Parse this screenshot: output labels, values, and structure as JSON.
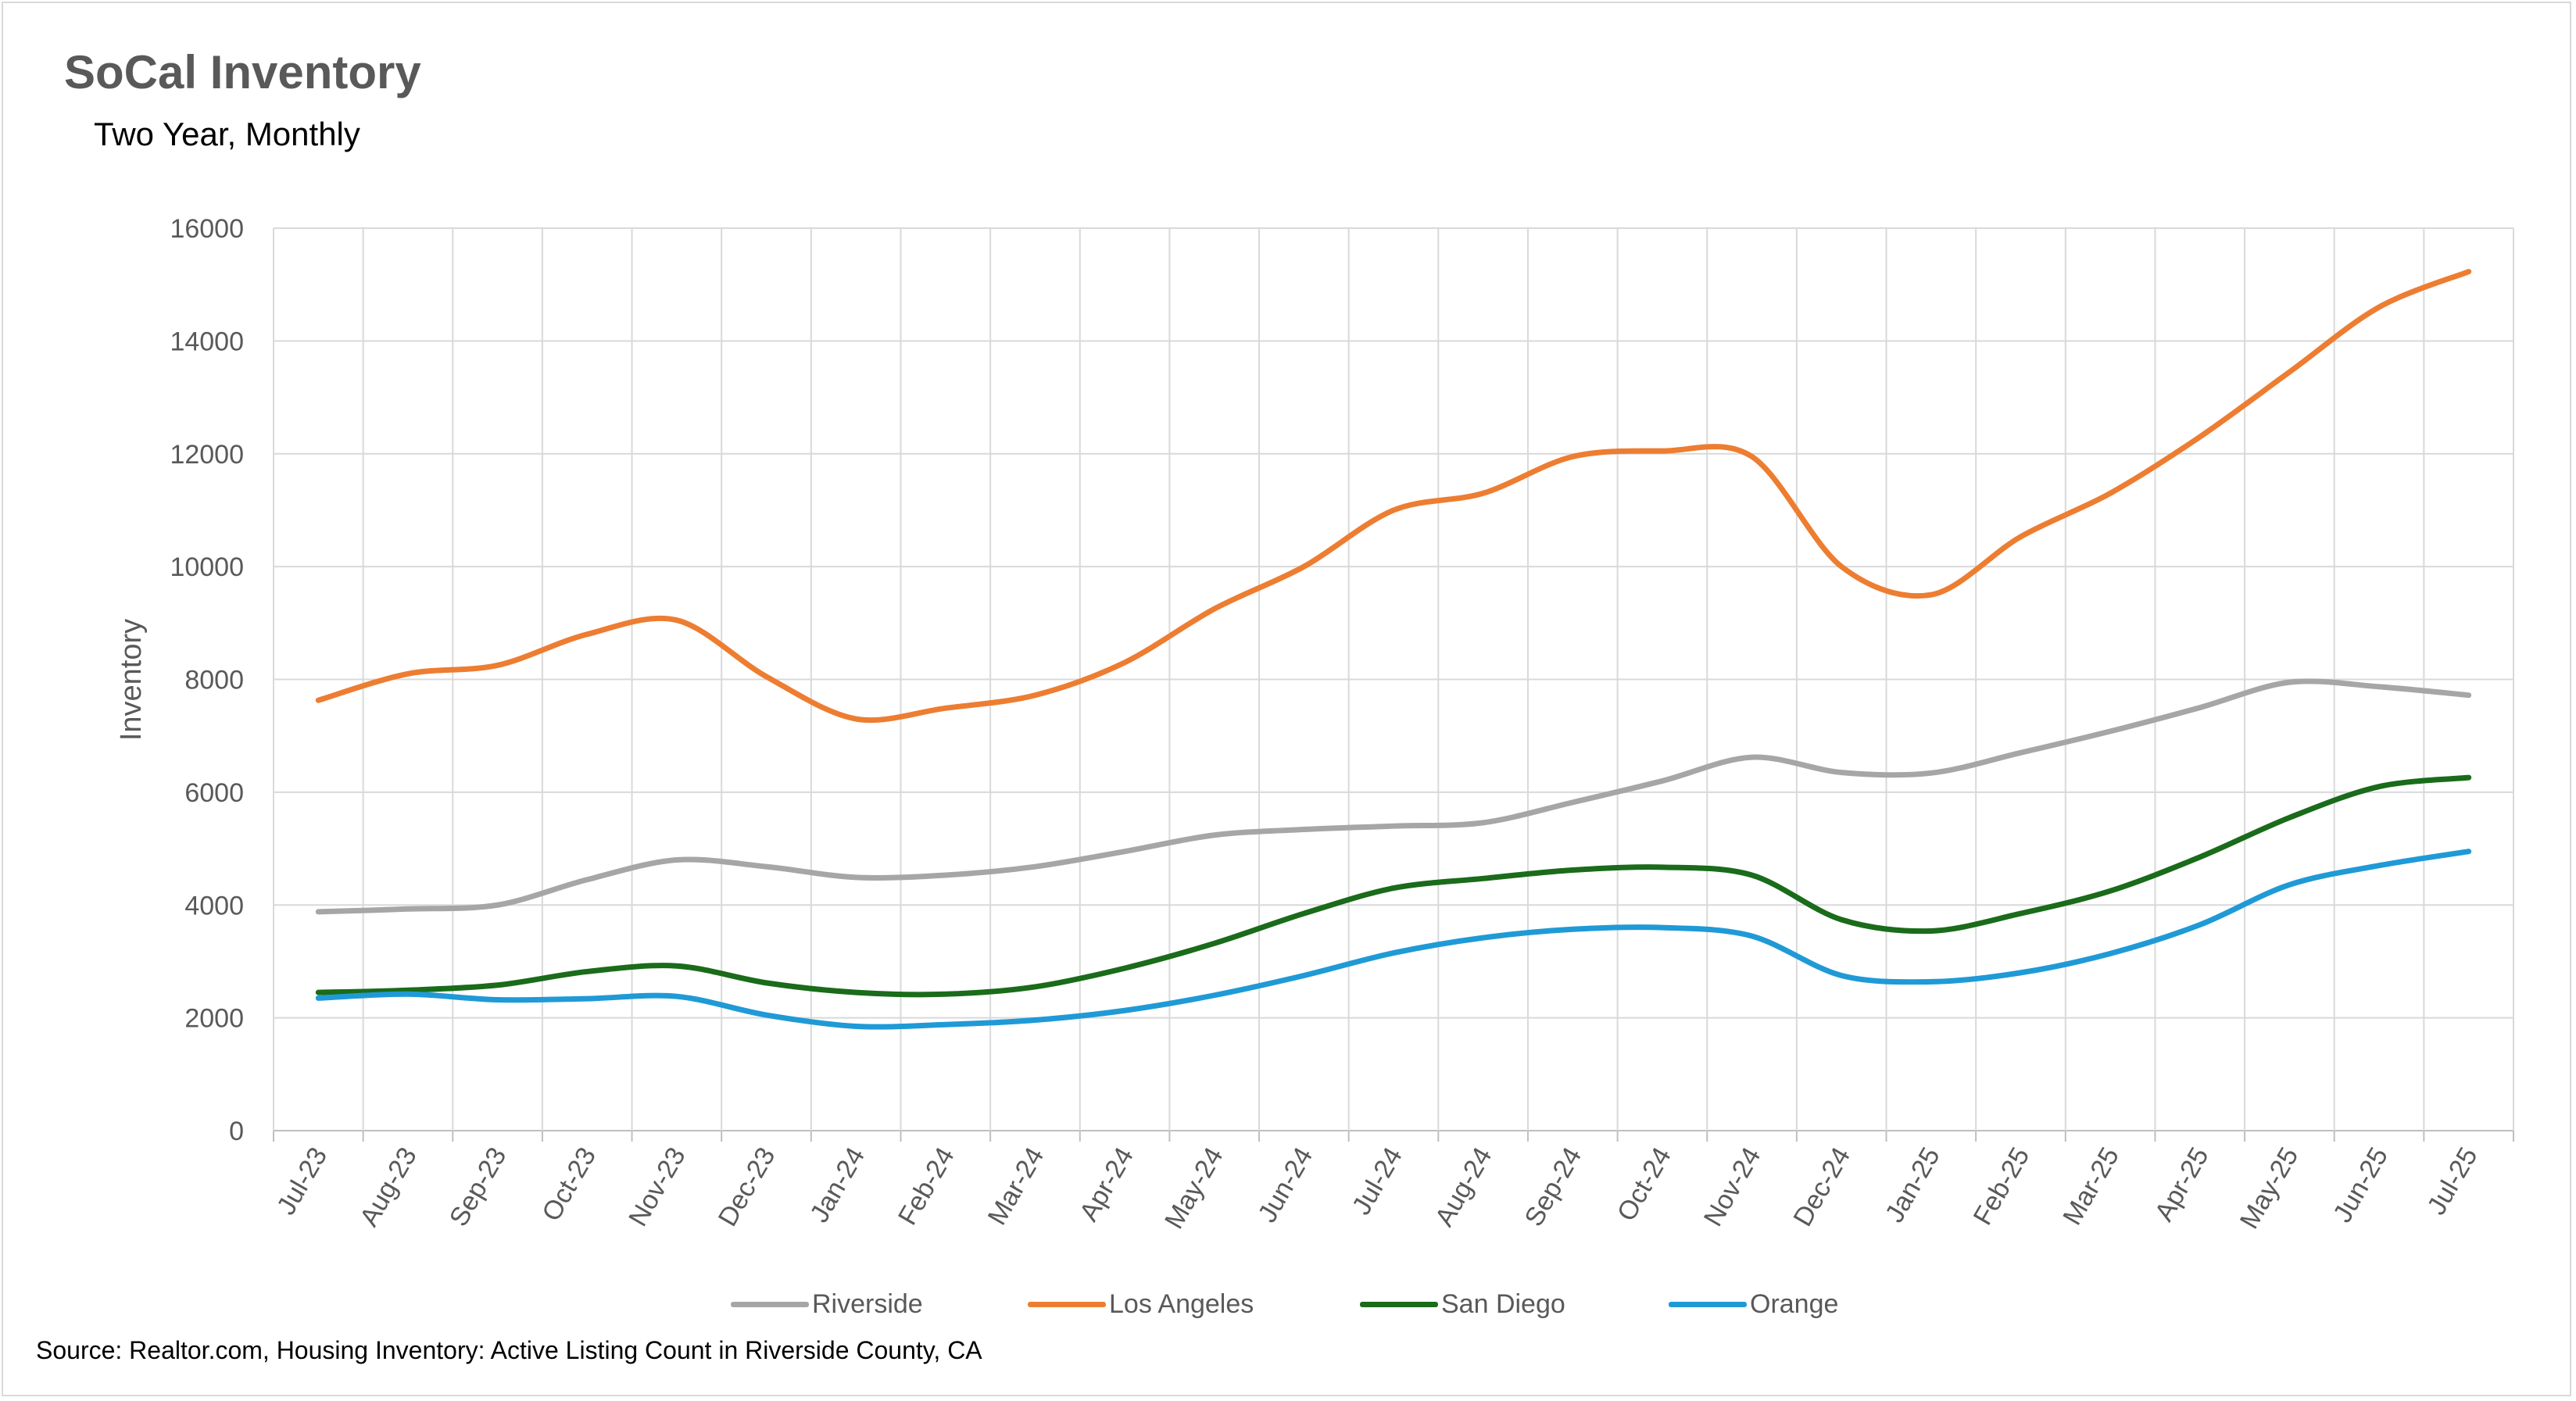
{
  "title": "SoCal Inventory",
  "subtitle": "Two Year, Monthly",
  "source": "Source: Realtor.com, Housing Inventory: Active Listing Count in Riverside County, CA",
  "chart_data": {
    "type": "line",
    "title": "SoCal Inventory",
    "subtitle": "Two Year, Monthly",
    "xlabel": "",
    "ylabel": "Inventory",
    "ylim": [
      0,
      16000
    ],
    "yticks": [
      0,
      2000,
      4000,
      6000,
      8000,
      10000,
      12000,
      14000,
      16000
    ],
    "grid": true,
    "legend_position": "bottom",
    "categories": [
      "Jul-23",
      "Aug-23",
      "Sep-23",
      "Oct-23",
      "Nov-23",
      "Dec-23",
      "Jan-24",
      "Feb-24",
      "Mar-24",
      "Apr-24",
      "May-24",
      "Jun-24",
      "Jul-24",
      "Aug-24",
      "Sep-24",
      "Oct-24",
      "Nov-24",
      "Dec-24",
      "Jan-25",
      "Feb-25",
      "Mar-25",
      "Apr-25",
      "May-25",
      "Jun-25",
      "Jul-25"
    ],
    "series": [
      {
        "name": "Riverside",
        "color": "#a6a6a6",
        "values": [
          3880,
          3930,
          4000,
          4450,
          4800,
          4680,
          4490,
          4530,
          4680,
          4950,
          5240,
          5340,
          5400,
          5460,
          5820,
          6200,
          6620,
          6350,
          6340,
          6700,
          7080,
          7500,
          7950,
          7870,
          7720
        ]
      },
      {
        "name": "Los Angeles",
        "color": "#ed7d31",
        "values": [
          7630,
          8100,
          8250,
          8800,
          9050,
          8050,
          7300,
          7490,
          7720,
          8300,
          9250,
          10000,
          11000,
          11300,
          11950,
          12050,
          11950,
          10000,
          9500,
          10530,
          11300,
          12300,
          13450,
          14600,
          15230
        ]
      },
      {
        "name": "San Diego",
        "color": "#1a6b1a",
        "values": [
          2450,
          2490,
          2580,
          2820,
          2920,
          2620,
          2450,
          2420,
          2550,
          2880,
          3320,
          3850,
          4300,
          4470,
          4620,
          4670,
          4530,
          3740,
          3540,
          3850,
          4250,
          4850,
          5550,
          6100,
          6260
        ]
      },
      {
        "name": "Orange",
        "color": "#1f9ad6",
        "values": [
          2350,
          2420,
          2320,
          2340,
          2380,
          2050,
          1850,
          1880,
          1960,
          2130,
          2400,
          2750,
          3150,
          3420,
          3570,
          3600,
          3450,
          2750,
          2640,
          2800,
          3140,
          3650,
          4360,
          4700,
          4950
        ]
      }
    ]
  }
}
